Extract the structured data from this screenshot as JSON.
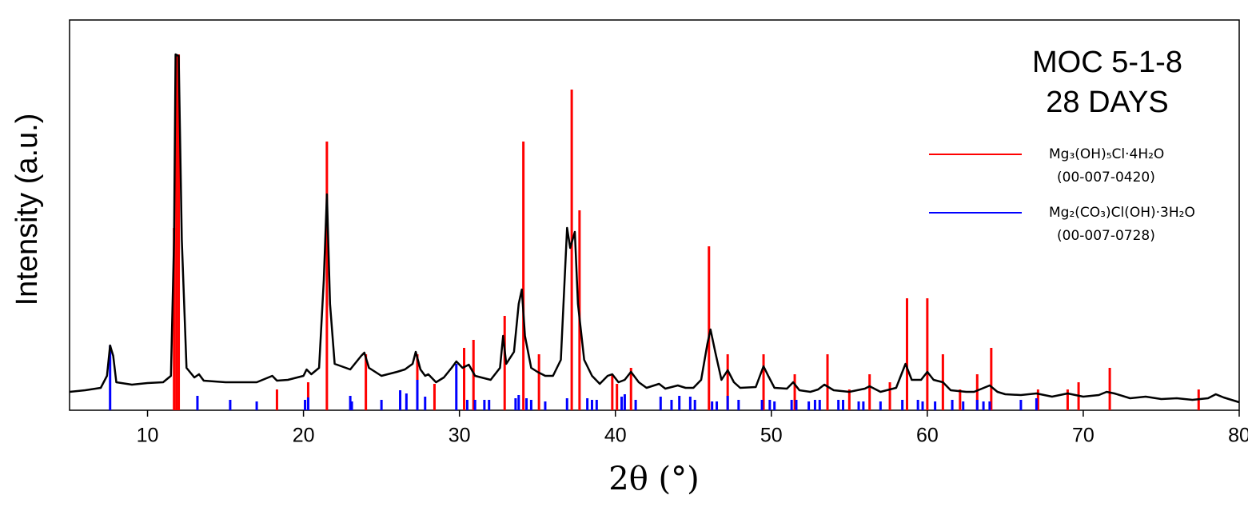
{
  "chart_data": {
    "type": "line",
    "title": "MOC 5-1-8",
    "subtitle": "28 DAYS",
    "x_label": "2θ (°)",
    "y_label": "Intensity (a.u.)",
    "xlim": [
      5,
      80
    ],
    "xticks": [
      10,
      20,
      30,
      40,
      50,
      60,
      70,
      80
    ],
    "ylim": [
      0,
      488
    ],
    "color": "#000000",
    "x": [
      5,
      6,
      7,
      7.4,
      7.6,
      7.8,
      8,
      9,
      10,
      11,
      11.5,
      11.7,
      11.8,
      12.0,
      12.2,
      12.5,
      13,
      13.3,
      13.6,
      15,
      17,
      18,
      18.3,
      19,
      20,
      20.2,
      20.5,
      21,
      21.3,
      21.5,
      21.7,
      22,
      23,
      23.7,
      23.9,
      24.2,
      25,
      26,
      26.5,
      27,
      27.2,
      27.5,
      27.8,
      28,
      28.5,
      29,
      29.5,
      29.8,
      30.2,
      30.6,
      31,
      32,
      32.6,
      32.8,
      33,
      33.5,
      33.8,
      34,
      34.2,
      34.6,
      35,
      35.5,
      36,
      36.5,
      36.9,
      37.1,
      37.4,
      37.6,
      38,
      38.5,
      39,
      39.5,
      39.8,
      40.2,
      40.6,
      41,
      41.5,
      42,
      42.8,
      43.2,
      44,
      44.5,
      45,
      45.5,
      45.9,
      46.1,
      46.4,
      46.8,
      47.2,
      47.6,
      48,
      49,
      49.5,
      49.8,
      50.2,
      51,
      51.4,
      51.8,
      52.5,
      53,
      53.4,
      54,
      55,
      56,
      56.3,
      57,
      58,
      58.6,
      59,
      59.6,
      60,
      60.4,
      61,
      61.5,
      62.5,
      63,
      64,
      64.5,
      65,
      66,
      67,
      68,
      69,
      70,
      71,
      71.5,
      72,
      73,
      74,
      75,
      76,
      77,
      78,
      78.5,
      79,
      80
    ],
    "values": [
      23,
      25,
      28,
      43,
      81,
      68,
      35,
      32,
      34,
      35,
      43,
      213,
      445,
      443,
      213,
      53,
      41,
      45,
      37,
      35,
      35,
      43,
      37,
      38,
      43,
      51,
      45,
      53,
      163,
      270,
      133,
      58,
      51,
      68,
      72,
      53,
      43,
      48,
      51,
      58,
      73,
      51,
      43,
      45,
      35,
      41,
      53,
      61,
      53,
      57,
      43,
      38,
      53,
      93,
      58,
      73,
      133,
      151,
      93,
      53,
      48,
      43,
      43,
      63,
      228,
      203,
      223,
      133,
      63,
      43,
      33,
      43,
      45,
      35,
      38,
      48,
      35,
      28,
      33,
      27,
      31,
      28,
      28,
      38,
      83,
      101,
      73,
      38,
      50,
      35,
      28,
      29,
      55,
      43,
      28,
      27,
      35,
      25,
      23,
      26,
      32,
      25,
      23,
      27,
      30,
      23,
      28,
      58,
      38,
      38,
      48,
      38,
      35,
      25,
      23,
      23,
      31,
      23,
      20,
      19,
      21,
      17,
      21,
      17,
      19,
      23,
      21,
      15,
      17,
      14,
      15,
      13,
      15,
      20,
      16,
      10
    ],
    "series": [
      {
        "name": "Mg₃(OH)₅Cl·4H₂O",
        "code": "(00-007-0420)",
        "color": "#ff0000",
        "x": [
          11.7,
          11.85,
          12.0,
          18.3,
          20.3,
          21.5,
          24.0,
          27.3,
          28.4,
          30.3,
          30.9,
          32.9,
          34.1,
          35.1,
          37.2,
          37.7,
          39.8,
          40.1,
          41.0,
          46.0,
          47.2,
          49.5,
          51.5,
          53.6,
          55.0,
          56.3,
          57.6,
          58.7,
          60.0,
          61.0,
          62.1,
          63.2,
          64.1,
          67.1,
          69.0,
          69.7,
          71.7,
          77.4
        ],
        "values": [
          228,
          445,
          445,
          26,
          35,
          336,
          70,
          70,
          33,
          78,
          88,
          118,
          336,
          70,
          401,
          250,
          45,
          33,
          53,
          205,
          70,
          70,
          45,
          70,
          26,
          45,
          35,
          140,
          140,
          70,
          26,
          45,
          78,
          26,
          26,
          35,
          53,
          26
        ]
      },
      {
        "name": "Mg₂(CO₃)Cl(OH)·3H₂O",
        "code": "(00-007-0728)",
        "color": "#0000ff",
        "x": [
          7.6,
          13.2,
          15.3,
          17.0,
          20.1,
          20.3,
          23.0,
          23.1,
          25.0,
          26.2,
          26.6,
          27.3,
          27.8,
          29.8,
          30.5,
          31.0,
          31.6,
          31.9,
          33.6,
          33.8,
          34.3,
          34.6,
          35.5,
          36.9,
          38.2,
          38.5,
          38.8,
          40.4,
          40.6,
          41.3,
          42.9,
          43.6,
          44.1,
          44.8,
          45.1,
          46.2,
          46.5,
          47.2,
          47.9,
          49.4,
          49.9,
          50.2,
          51.3,
          51.6,
          52.4,
          52.8,
          53.1,
          54.3,
          54.6,
          55.6,
          55.9,
          57.0,
          58.4,
          59.4,
          59.7,
          60.5,
          61.6,
          62.3,
          63.2,
          63.6,
          64.0,
          66.0,
          67.0
        ],
        "values": [
          81,
          18,
          13,
          11,
          13,
          16,
          18,
          11,
          13,
          25,
          21,
          38,
          17,
          58,
          13,
          13,
          13,
          13,
          15,
          19,
          15,
          13,
          11,
          15,
          15,
          13,
          13,
          17,
          20,
          13,
          17,
          13,
          18,
          17,
          13,
          11,
          11,
          18,
          13,
          13,
          13,
          11,
          13,
          13,
          11,
          13,
          13,
          13,
          13,
          11,
          11,
          11,
          13,
          13,
          11,
          11,
          13,
          11,
          13,
          11,
          11,
          13,
          15
        ]
      }
    ]
  }
}
